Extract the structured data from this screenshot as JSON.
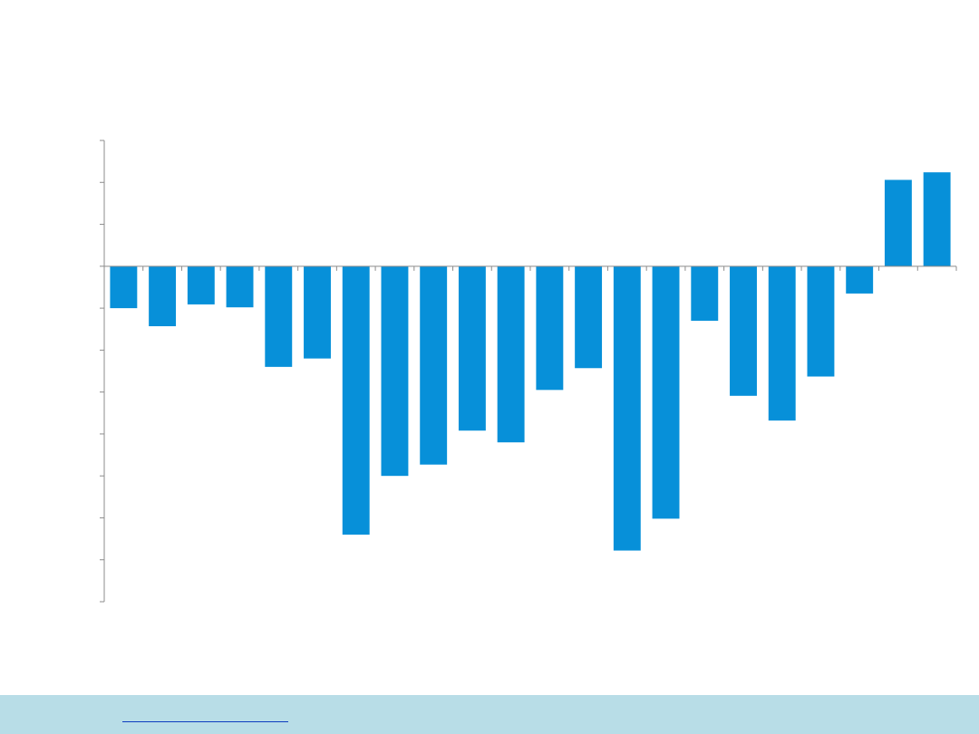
{
  "colors": {
    "bar": "#0790d9",
    "axis": "#8c8c8c",
    "footer_background": "#b8dde7",
    "link": "#0d3cbf"
  },
  "chart_data": {
    "type": "bar",
    "title": "",
    "xlabel": "",
    "ylabel": "",
    "grid": false,
    "legend": "none",
    "y_range": [
      -8,
      3
    ],
    "y_major_step": 1,
    "categories": [
      "",
      "",
      "",
      "",
      "",
      "",
      "",
      "",
      "",
      "",
      "",
      "",
      "",
      "",
      "",
      "",
      "",
      "",
      "",
      "",
      "",
      ""
    ],
    "values": [
      -1.0,
      -1.43,
      -0.91,
      -0.98,
      -2.4,
      -2.2,
      -6.4,
      -5.0,
      -4.73,
      -3.92,
      -4.2,
      -2.95,
      -2.43,
      -6.78,
      -6.02,
      -1.3,
      -3.09,
      -3.68,
      -2.63,
      -0.65,
      2.06,
      2.24
    ]
  },
  "footer": {
    "link_text": ""
  }
}
